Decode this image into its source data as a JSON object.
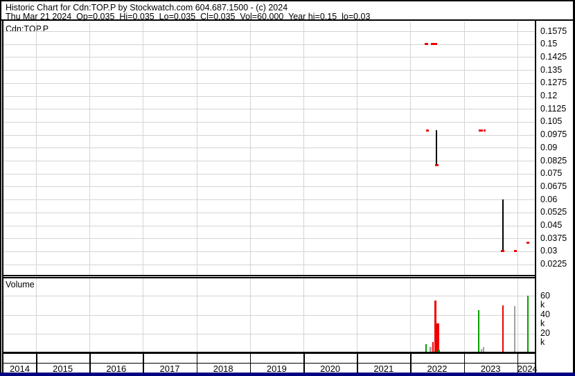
{
  "header": {
    "line1": "Historic Chart for Cdn:TOP.P by Stockwatch.com 604.687.1500 - (c) 2024",
    "line2": "Thu Mar 21 2024  Op=0.035  Hi=0.035  Lo=0.035  Cl=0.035  Vol=60,000  Year hi=0.15  lo=0.03"
  },
  "price_pane": {
    "symbol": "Cdn:TOP.P",
    "tick_labels": [
      "0.1575",
      "0.15",
      "0.1425",
      "0.135",
      "0.1275",
      "0.12",
      "0.1125",
      "0.105",
      "0.0975",
      "0.09",
      "0.0825",
      "0.075",
      "0.0675",
      "0.06",
      "0.0525",
      "0.045",
      "0.0375",
      "0.03",
      "0.0225"
    ]
  },
  "volume_pane": {
    "label": "Volume",
    "tick_labels": [
      "60 k",
      "40 k",
      "20 k"
    ]
  },
  "x_axis": {
    "year_labels": [
      "2014",
      "2015",
      "2016",
      "2017",
      "2018",
      "2019",
      "2020",
      "2021",
      "2022",
      "2023",
      "2024"
    ]
  },
  "colors": {
    "red": "#ee0000",
    "green": "#00a000",
    "gray": "#a0a0a0",
    "grid": "#d4d4d4",
    "border": "#000000",
    "bottom_strip_navy": "#000080",
    "background": "#ffffff"
  },
  "chart_data": {
    "type": "ohlc-history",
    "title": "Historic Chart for Cdn:TOP.P",
    "symbol": "Cdn:TOP.P",
    "date": "Thu Mar 21 2024",
    "quote": {
      "open": 0.035,
      "high": 0.035,
      "low": 0.035,
      "close": 0.035,
      "volume": 60000,
      "year_high": 0.15,
      "year_low": 0.03
    },
    "price_axis": {
      "min": 0.0225,
      "max": 0.1575,
      "step": 0.0075
    },
    "volume_axis_ticks_k": [
      60,
      40,
      20
    ],
    "x_axis_years": [
      2014,
      2015,
      2016,
      2017,
      2018,
      2019,
      2020,
      2021,
      2022,
      2023,
      2024
    ],
    "trade_dashes": [
      {
        "year_x": 2022.3,
        "price": 0.15,
        "w": 5
      },
      {
        "year_x": 2022.44,
        "price": 0.15,
        "w": 9
      },
      {
        "year_x": 2022.32,
        "price": 0.1,
        "w": 4
      },
      {
        "year_x": 2023.3,
        "price": 0.1,
        "w": 3
      },
      {
        "year_x": 2023.34,
        "price": 0.1,
        "w": 3
      },
      {
        "year_x": 2023.39,
        "price": 0.1,
        "w": 3
      },
      {
        "year_x": 2023.96,
        "price": 0.03,
        "w": 4
      },
      {
        "year_x": 2024.2,
        "price": 0.035,
        "w": 4
      }
    ],
    "candles": [
      {
        "year_x": 2022.49,
        "high": 0.1,
        "low": 0.08,
        "close": 0.08
      },
      {
        "year_x": 2023.73,
        "high": 0.06,
        "low": 0.03,
        "close": 0.03
      }
    ],
    "volume_bars": [
      {
        "year_x": 2022.29,
        "volume_k": 9,
        "color": "green"
      },
      {
        "year_x": 2022.38,
        "volume_k": 6,
        "color": "gray"
      },
      {
        "year_x": 2022.42,
        "volume_k": 11,
        "color": "red"
      },
      {
        "year_x": 2022.47,
        "volume_k": 55,
        "color": "red"
      },
      {
        "year_x": 2022.51,
        "volume_k": 31,
        "color": "red",
        "w": 3.5
      },
      {
        "year_x": 2022.53,
        "volume_k": 3,
        "color": "green"
      },
      {
        "year_x": 2023.28,
        "volume_k": 45,
        "color": "green"
      },
      {
        "year_x": 2023.33,
        "volume_k": 4,
        "color": "gray"
      },
      {
        "year_x": 2023.37,
        "volume_k": 6,
        "color": "gray"
      },
      {
        "year_x": 2023.73,
        "volume_k": 50,
        "color": "red"
      },
      {
        "year_x": 2023.95,
        "volume_k": 49,
        "color": "gray"
      },
      {
        "year_x": 2024.2,
        "volume_k": 60,
        "color": "green"
      }
    ]
  }
}
